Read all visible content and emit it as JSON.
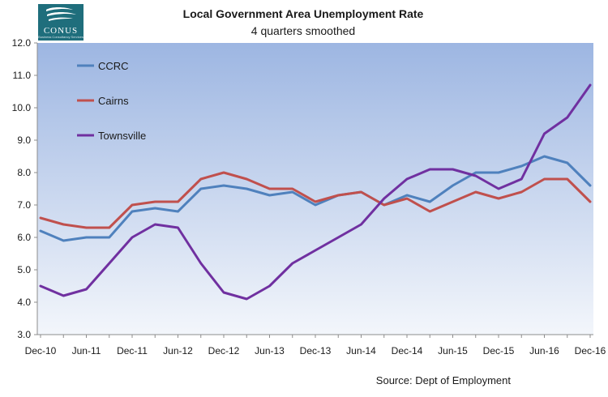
{
  "logo": {
    "name": "CONUS",
    "tagline": "Business Consultancy Services"
  },
  "source": "Source: Dept of Employment",
  "chart_data": {
    "type": "line",
    "title": "Local Government Area Unemployment Rate",
    "subtitle": "4 quarters smoothed",
    "xlabel": "",
    "ylabel": "",
    "ylim": [
      3.0,
      12.0
    ],
    "y_ticks": [
      "3.0",
      "4.0",
      "5.0",
      "6.0",
      "7.0",
      "8.0",
      "9.0",
      "10.0",
      "11.0",
      "12.0"
    ],
    "x_tick_labels": [
      "Dec-10",
      "Jun-11",
      "Dec-11",
      "Jun-12",
      "Dec-12",
      "Jun-13",
      "Dec-13",
      "Jun-14",
      "Dec-14",
      "Jun-15",
      "Dec-15",
      "Jun-16",
      "Dec-16"
    ],
    "x": [
      "Dec-10",
      "Mar-11",
      "Jun-11",
      "Sep-11",
      "Dec-11",
      "Mar-12",
      "Jun-12",
      "Sep-12",
      "Dec-12",
      "Mar-13",
      "Jun-13",
      "Sep-13",
      "Dec-13",
      "Mar-14",
      "Jun-14",
      "Sep-14",
      "Dec-14",
      "Mar-15",
      "Jun-15",
      "Sep-15",
      "Dec-15",
      "Mar-16",
      "Jun-16",
      "Sep-16",
      "Dec-16"
    ],
    "legend_position": "top-left",
    "grid": false,
    "plot_background": [
      "#9db6e2",
      "#f3f6fb"
    ],
    "series": [
      {
        "name": "CCRC",
        "color": "#4f81bd",
        "values": [
          6.2,
          5.9,
          6.0,
          6.0,
          6.8,
          6.9,
          6.8,
          7.5,
          7.6,
          7.5,
          7.3,
          7.4,
          7.0,
          7.3,
          7.4,
          7.0,
          7.3,
          7.1,
          7.6,
          8.0,
          8.0,
          8.2,
          8.5,
          8.3,
          7.6
        ]
      },
      {
        "name": "Cairns",
        "color": "#c0504d",
        "values": [
          6.6,
          6.4,
          6.3,
          6.3,
          7.0,
          7.1,
          7.1,
          7.8,
          8.0,
          7.8,
          7.5,
          7.5,
          7.1,
          7.3,
          7.4,
          7.0,
          7.2,
          6.8,
          7.1,
          7.4,
          7.2,
          7.4,
          7.8,
          7.8,
          7.1
        ]
      },
      {
        "name": "Townsville",
        "color": "#7030a0",
        "values": [
          4.5,
          4.2,
          4.4,
          5.2,
          6.0,
          6.4,
          6.3,
          5.2,
          4.3,
          4.1,
          4.5,
          5.2,
          5.6,
          6.0,
          6.4,
          7.2,
          7.8,
          8.1,
          8.1,
          7.9,
          7.5,
          7.8,
          9.2,
          9.7,
          10.7
        ]
      }
    ]
  }
}
